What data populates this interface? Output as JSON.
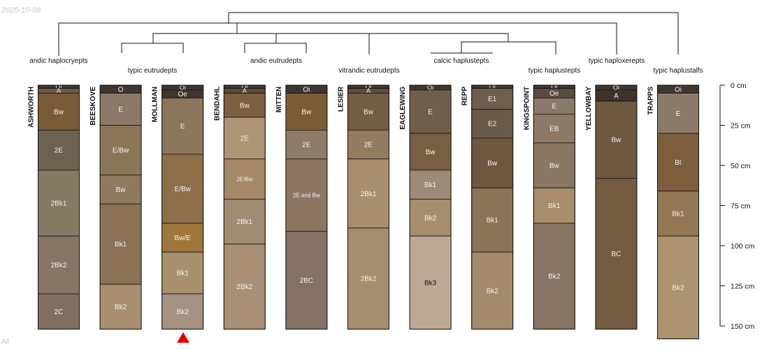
{
  "header": {
    "date": "2025-10-08",
    "footer_label": "All"
  },
  "axis": {
    "unit": "cm",
    "ticks": [
      0,
      25,
      50,
      75,
      100,
      125,
      150
    ]
  },
  "taxa": [
    {
      "label": "andic haplocryepts"
    },
    {
      "label": "typic eutrudepts"
    },
    {
      "label": "andic eutrudepts"
    },
    {
      "label": "vitrandic eutrudepts"
    },
    {
      "label": "calcic haplustepts"
    },
    {
      "label": "typic haplustepts"
    },
    {
      "label": "typic haploxerepts"
    },
    {
      "label": "typic haplustalfs"
    }
  ],
  "profiles": [
    {
      "name": "ASHWORTH",
      "horizons": [
        {
          "name": "Oi",
          "top": 0,
          "bottom": 2,
          "color": "#3d3530"
        },
        {
          "name": "A",
          "top": 2,
          "bottom": 5,
          "color": "#6e5a44"
        },
        {
          "name": "Bw",
          "top": 5,
          "bottom": 28,
          "color": "#7a5a37"
        },
        {
          "name": "2E",
          "top": 28,
          "bottom": 53,
          "color": "#6b6250"
        },
        {
          "name": "2Bk1",
          "top": 53,
          "bottom": 94,
          "color": "#857a63"
        },
        {
          "name": "2Bk2",
          "top": 94,
          "bottom": 130,
          "color": "#877665"
        },
        {
          "name": "2C",
          "top": 130,
          "bottom": 152,
          "color": "#806f61"
        }
      ]
    },
    {
      "name": "BEESKOVE",
      "horizons": [
        {
          "name": "O",
          "top": 0,
          "bottom": 5,
          "color": "#3e3631"
        },
        {
          "name": "E",
          "top": 5,
          "bottom": 25,
          "color": "#8b7866"
        },
        {
          "name": "E/Bw",
          "top": 25,
          "bottom": 56,
          "color": "#8c7659"
        },
        {
          "name": "Bw",
          "top": 56,
          "bottom": 74,
          "color": "#8f7a60"
        },
        {
          "name": "Bk1",
          "top": 74,
          "bottom": 124,
          "color": "#8b7256"
        },
        {
          "name": "Bk2",
          "top": 124,
          "bottom": 152,
          "color": "#a78f70"
        }
      ]
    },
    {
      "name": "MOLLMAN",
      "horizons": [
        {
          "name": "Oi",
          "top": 0,
          "bottom": 3,
          "color": "#3a332e"
        },
        {
          "name": "Oe",
          "top": 3,
          "bottom": 8,
          "color": "#3e3630"
        },
        {
          "name": "E",
          "top": 8,
          "bottom": 43,
          "color": "#8c765c"
        },
        {
          "name": "E/Bw",
          "top": 43,
          "bottom": 86,
          "color": "#8d6f4a"
        },
        {
          "name": "Bw/E",
          "top": 86,
          "bottom": 104,
          "color": "#a0773b"
        },
        {
          "name": "Bk1",
          "top": 104,
          "bottom": 130,
          "color": "#a8906f"
        },
        {
          "name": "Bk2",
          "top": 130,
          "bottom": 152,
          "color": "#a69282"
        }
      ]
    },
    {
      "name": "BENDAHL",
      "horizons": [
        {
          "name": "Oi",
          "top": 0,
          "bottom": 2,
          "color": "#3e3631"
        },
        {
          "name": "A",
          "top": 2,
          "bottom": 5,
          "color": "#5b4a3b"
        },
        {
          "name": "Bw",
          "top": 5,
          "bottom": 20,
          "color": "#7d5e3e"
        },
        {
          "name": "2E",
          "top": 20,
          "bottom": 46,
          "color": "#ad9474"
        },
        {
          "name": "2E/Bw",
          "top": 46,
          "bottom": 71,
          "color": "#a58866"
        },
        {
          "name": "2Bk1",
          "top": 71,
          "bottom": 99,
          "color": "#a08b73"
        },
        {
          "name": "2Bk2",
          "top": 99,
          "bottom": 152,
          "color": "#a88f76"
        }
      ]
    },
    {
      "name": "MITTEN",
      "horizons": [
        {
          "name": "Oi",
          "top": 0,
          "bottom": 5,
          "color": "#3e3631"
        },
        {
          "name": "Bw",
          "top": 5,
          "bottom": 28,
          "color": "#7c5c36"
        },
        {
          "name": "2E",
          "top": 28,
          "bottom": 46,
          "color": "#8f7c68"
        },
        {
          "name": "2E and Bw",
          "top": 46,
          "bottom": 91,
          "color": "#8c7663"
        },
        {
          "name": "2BC",
          "top": 91,
          "bottom": 152,
          "color": "#857264"
        }
      ]
    },
    {
      "name": "LESIER",
      "horizons": [
        {
          "name": "Oi",
          "top": 0,
          "bottom": 2,
          "color": "#3e3631"
        },
        {
          "name": "A",
          "top": 2,
          "bottom": 5,
          "color": "#5e4d3d"
        },
        {
          "name": "Bw",
          "top": 5,
          "bottom": 28,
          "color": "#745d45"
        },
        {
          "name": "2E",
          "top": 28,
          "bottom": 46,
          "color": "#937b61"
        },
        {
          "name": "2Bk1",
          "top": 46,
          "bottom": 89,
          "color": "#a8906f"
        },
        {
          "name": "2Bk2",
          "top": 89,
          "bottom": 152,
          "color": "#a58d70"
        }
      ]
    },
    {
      "name": "EAGLEWING",
      "horizons": [
        {
          "name": "Oi",
          "top": 0,
          "bottom": 3,
          "color": "#3e3631"
        },
        {
          "name": "E",
          "top": 3,
          "bottom": 30,
          "color": "#6f5e4c"
        },
        {
          "name": "Bw",
          "top": 30,
          "bottom": 53,
          "color": "#785e42"
        },
        {
          "name": "Bk1",
          "top": 53,
          "bottom": 71,
          "color": "#9e8b77"
        },
        {
          "name": "Bk2",
          "top": 71,
          "bottom": 94,
          "color": "#a68e6d"
        },
        {
          "name": "Bk3",
          "top": 94,
          "bottom": 152,
          "color": "#bea996"
        }
      ]
    },
    {
      "name": "REPP",
      "horizons": [
        {
          "name": "Oi",
          "top": 0,
          "bottom": 2,
          "color": "#3e3631"
        },
        {
          "name": "E1",
          "top": 2,
          "bottom": 15,
          "color": "#6f5e4c"
        },
        {
          "name": "E2",
          "top": 15,
          "bottom": 33,
          "color": "#6b5a48"
        },
        {
          "name": "Bw",
          "top": 33,
          "bottom": 64,
          "color": "#6f563e"
        },
        {
          "name": "Bk1",
          "top": 64,
          "bottom": 104,
          "color": "#8a7358"
        },
        {
          "name": "Bk2",
          "top": 104,
          "bottom": 152,
          "color": "#a38a6c"
        }
      ]
    },
    {
      "name": "KINGSPOINT",
      "horizons": [
        {
          "name": "Oi",
          "top": 0,
          "bottom": 2,
          "color": "#3e3631"
        },
        {
          "name": "Oe",
          "top": 2,
          "bottom": 8,
          "color": "#5a4b3f"
        },
        {
          "name": "E",
          "top": 8,
          "bottom": 18,
          "color": "#8c7a68"
        },
        {
          "name": "EB",
          "top": 18,
          "bottom": 36,
          "color": "#8d7a66"
        },
        {
          "name": "Bw",
          "top": 36,
          "bottom": 64,
          "color": "#8a7864"
        },
        {
          "name": "Bk1",
          "top": 64,
          "bottom": 86,
          "color": "#a88e6b"
        },
        {
          "name": "Bk2",
          "top": 86,
          "bottom": 152,
          "color": "#887564"
        }
      ]
    },
    {
      "name": "YELLOWBAY",
      "horizons": [
        {
          "name": "Oi",
          "top": 0,
          "bottom": 3,
          "color": "#3e3631"
        },
        {
          "name": "A",
          "top": 3,
          "bottom": 10,
          "color": "#3f3329"
        },
        {
          "name": "Bw",
          "top": 10,
          "bottom": 58,
          "color": "#6e5840"
        },
        {
          "name": "BC",
          "top": 58,
          "bottom": 152,
          "color": "#735c41"
        }
      ]
    },
    {
      "name": "TRAPPS",
      "horizons": [
        {
          "name": "Oi",
          "top": 0,
          "bottom": 5,
          "color": "#3e3631"
        },
        {
          "name": "E",
          "top": 5,
          "bottom": 30,
          "color": "#8c7a68"
        },
        {
          "name": "Bt",
          "top": 30,
          "bottom": 66,
          "color": "#7c5e3c"
        },
        {
          "name": "Bk1",
          "top": 66,
          "bottom": 94,
          "color": "#937856"
        },
        {
          "name": "Bk2",
          "top": 94,
          "bottom": 158,
          "color": "#ad9470"
        }
      ]
    }
  ]
}
